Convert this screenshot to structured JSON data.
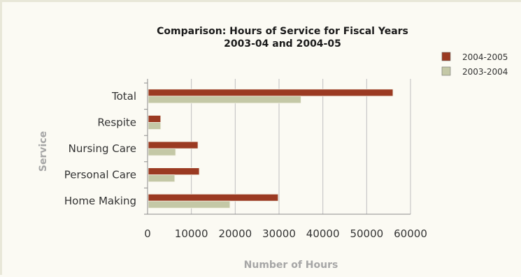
{
  "chart_data": {
    "type": "bar",
    "orientation": "horizontal",
    "title": "Comparison: Hours of Service for Fiscal Years",
    "subtitle": "2003-04 and 2004-05",
    "xlabel": "Number of Hours",
    "ylabel": "Service",
    "categories": [
      "Total",
      "Respite",
      "Nursing Care",
      "Personal Care",
      "Home Making"
    ],
    "series": [
      {
        "name": "2004-2005",
        "color": "#9b3a22",
        "values": [
          56000,
          3000,
          11500,
          11800,
          29800
        ]
      },
      {
        "name": "2003-2004",
        "color": "#c4c8a6",
        "values": [
          35000,
          3000,
          6400,
          6200,
          18800
        ]
      }
    ],
    "xlim": [
      0,
      60000
    ],
    "xticks": [
      0,
      10000,
      20000,
      30000,
      40000,
      50000,
      60000
    ],
    "xtick_labels": [
      "0",
      "10000",
      "20000",
      "30000",
      "40000",
      "50000",
      "60000"
    ],
    "grid": true,
    "legend_position": "top-right"
  }
}
